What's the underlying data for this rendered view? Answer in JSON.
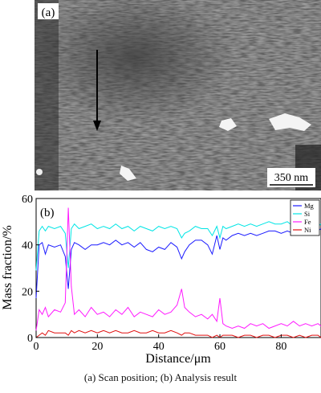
{
  "micrograph": {
    "panel_label": "(a)",
    "scale_bar_label": "350 nm",
    "arrow_icon": "down-arrow-icon"
  },
  "chart_data": {
    "type": "line",
    "panel_label": "(b)",
    "xlabel": "Distance/μm",
    "ylabel": "Mass fraction/%",
    "xlim": [
      0,
      93
    ],
    "ylim": [
      0,
      60
    ],
    "x_ticks": [
      0,
      20,
      40,
      60,
      80
    ],
    "y_ticks": [
      0,
      20,
      40,
      60
    ],
    "grid": false,
    "legend_position": "top-right",
    "series": [
      {
        "name": "Mg",
        "color": "#1a1aff",
        "x": [
          0,
          1,
          2,
          3,
          4,
          6,
          8,
          9.5,
          10.5,
          11.5,
          12.5,
          14,
          16,
          18,
          20,
          22,
          24,
          26,
          28,
          30,
          32,
          34,
          36,
          38,
          40,
          42,
          44,
          46,
          47.5,
          48.5,
          50,
          52,
          54,
          56,
          57.5,
          59,
          60,
          61,
          62,
          64,
          66,
          68,
          70,
          72,
          74,
          76,
          78,
          80,
          82,
          84,
          86,
          88,
          90,
          92,
          93
        ],
        "y": [
          17,
          40,
          41,
          36,
          40,
          39,
          40,
          35,
          21,
          38,
          41,
          40,
          38,
          40,
          40,
          41,
          40,
          42,
          40,
          41,
          39,
          41,
          38,
          37,
          39,
          38,
          41,
          39,
          34,
          37,
          40,
          42,
          42,
          40,
          36,
          44,
          38,
          43,
          42,
          44,
          45,
          44,
          45,
          44,
          45,
          46,
          46,
          45,
          46,
          45,
          46,
          45,
          46,
          46,
          47
        ]
      },
      {
        "name": "Si",
        "color": "#00e5e5",
        "x": [
          0,
          1,
          2,
          3,
          4,
          6,
          8,
          9.5,
          10.5,
          11.5,
          12.5,
          14,
          16,
          18,
          20,
          22,
          24,
          26,
          28,
          30,
          32,
          34,
          36,
          38,
          40,
          42,
          44,
          46,
          47.5,
          48.5,
          50,
          52,
          54,
          56,
          57.5,
          59,
          60,
          61,
          62,
          64,
          66,
          68,
          70,
          72,
          74,
          76,
          78,
          80,
          82,
          84,
          86,
          88,
          90,
          92,
          93
        ],
        "y": [
          29,
          46,
          48,
          46,
          48,
          47,
          48,
          45,
          30,
          47,
          49,
          47,
          48,
          49,
          47,
          48,
          47,
          49,
          47,
          48,
          46,
          48,
          47,
          46,
          48,
          47,
          48,
          47,
          43,
          45,
          46,
          48,
          47,
          47,
          44,
          48,
          43,
          48,
          47,
          48,
          49,
          48,
          49,
          48,
          49,
          50,
          49,
          49,
          50,
          48,
          50,
          49,
          49,
          48,
          49
        ]
      },
      {
        "name": "Fe",
        "color": "#ff1aff",
        "x": [
          0,
          1,
          2,
          3,
          4,
          6,
          8,
          9.5,
          10.5,
          11.5,
          12.5,
          14,
          16,
          18,
          20,
          22,
          24,
          26,
          28,
          30,
          32,
          34,
          36,
          38,
          40,
          42,
          44,
          46,
          47.5,
          48.5,
          50,
          52,
          54,
          56,
          57.5,
          59,
          60,
          61,
          62,
          64,
          66,
          68,
          70,
          72,
          74,
          76,
          78,
          80,
          82,
          84,
          86,
          88,
          90,
          92,
          93
        ],
        "y": [
          3,
          12,
          10,
          13,
          9,
          12,
          11,
          15,
          56,
          22,
          10,
          12,
          9,
          13,
          10,
          11,
          9,
          12,
          10,
          13,
          9,
          11,
          10,
          9,
          12,
          10,
          11,
          14,
          21,
          13,
          11,
          9,
          10,
          8,
          10,
          7,
          17,
          6,
          5,
          4,
          5,
          4,
          6,
          5,
          6,
          4,
          5,
          6,
          5,
          7,
          5,
          6,
          5,
          6,
          5
        ]
      },
      {
        "name": "Ni",
        "color": "#e01010",
        "x": [
          0,
          1,
          2,
          3,
          4,
          6,
          8,
          9.5,
          10.5,
          11.5,
          12.5,
          14,
          16,
          18,
          20,
          22,
          24,
          26,
          28,
          30,
          32,
          34,
          36,
          38,
          40,
          42,
          44,
          46,
          47.5,
          48.5,
          50,
          52,
          54,
          56,
          57.5,
          59,
          60,
          61,
          62,
          64,
          66,
          68,
          70,
          72,
          74,
          76,
          78,
          80,
          82,
          84,
          86,
          88,
          90,
          92,
          93
        ],
        "y": [
          0,
          1,
          2,
          1,
          3,
          2,
          2,
          2,
          1,
          3,
          2,
          3,
          2,
          3,
          2,
          3,
          2,
          3,
          2,
          2,
          3,
          2,
          2,
          3,
          2,
          2,
          3,
          2,
          1,
          2,
          2,
          1,
          1,
          1,
          0,
          1,
          0,
          1,
          1,
          1,
          0,
          1,
          1,
          0,
          1,
          1,
          0,
          1,
          1,
          0,
          1,
          0,
          1,
          1,
          0
        ]
      }
    ]
  },
  "caption": "(a)  Scan position; (b) Analysis result"
}
